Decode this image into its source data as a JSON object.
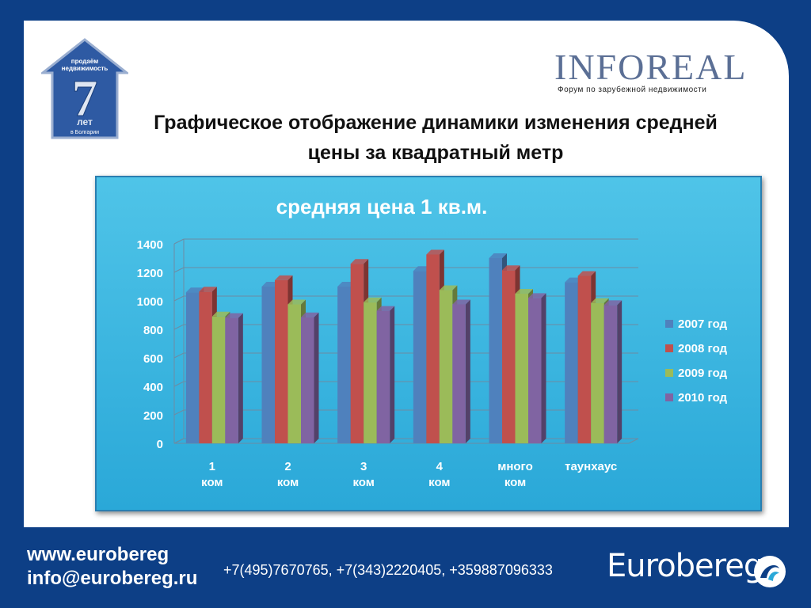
{
  "header": {
    "badge": {
      "line1": "продаём",
      "line2": "недвижимость",
      "number": "7",
      "years": "лет",
      "country": "в Болгарии"
    },
    "brand": {
      "name": "INFOREAL",
      "tagline": "Форум по зарубежной недвижимости"
    },
    "title": "Графическое отображение динамики изменения средней цены за квадратный метр"
  },
  "chart_data": {
    "type": "bar",
    "title": "средняя цена 1 кв.м.",
    "categories": [
      "1 ком",
      "2 ком",
      "3 ком",
      "4 ком",
      "много ком",
      "таунхаус"
    ],
    "series": [
      {
        "name": "2007 год",
        "values": [
          1060,
          1100,
          1100,
          1210,
          1300,
          1130
        ],
        "color": "#4f81bd"
      },
      {
        "name": "2008 год",
        "values": [
          1065,
          1145,
          1260,
          1325,
          1215,
          1175
        ],
        "color": "#c0504d"
      },
      {
        "name": "2009 год",
        "values": [
          890,
          975,
          990,
          1075,
          1050,
          985
        ],
        "color": "#9bbb59"
      },
      {
        "name": "2010 год",
        "values": [
          880,
          885,
          930,
          975,
          1020,
          970
        ],
        "color": "#8064a2"
      }
    ],
    "yticks": [
      "0",
      "200",
      "400",
      "600",
      "800",
      "1000",
      "1200",
      "1400"
    ],
    "ylim": [
      0,
      1400
    ],
    "grid": true,
    "legend": "right"
  },
  "footer": {
    "website": "www.eurobereg",
    "email": "info@eurobereg.ru",
    "phones": "+7(495)7670765, +7(343)2220405, +359887096333",
    "logo": "Eurobereg"
  }
}
